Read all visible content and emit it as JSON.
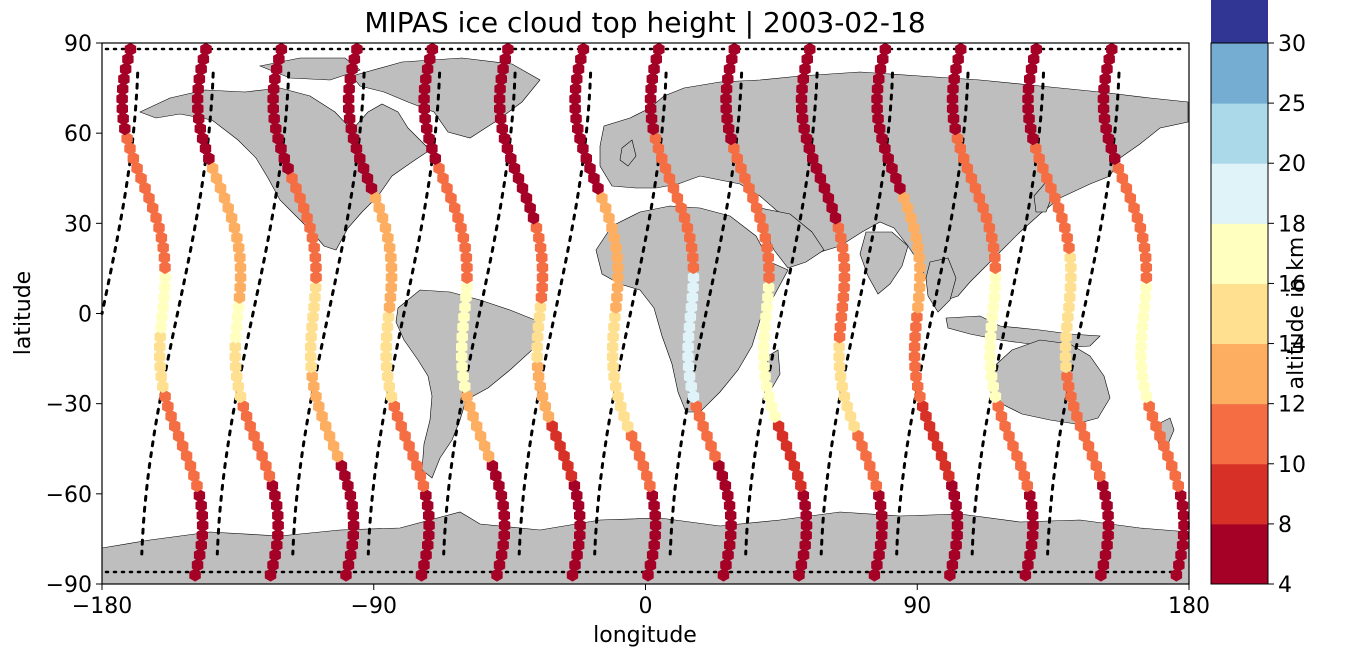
{
  "title": "MIPAS ice cloud top height | 2003-02-18",
  "chart_data": {
    "type": "scatter",
    "title": "MIPAS ice cloud top height | 2003-02-18",
    "xlabel": "longitude",
    "ylabel": "latitude",
    "xlim": [
      -180,
      180
    ],
    "ylim": [
      -90,
      90
    ],
    "xticks": [
      -180,
      -90,
      0,
      90,
      180
    ],
    "yticks": [
      -90,
      -60,
      -30,
      0,
      30,
      60,
      90
    ],
    "xtick_labels": [
      "−180",
      "−90",
      "0",
      "90",
      "180"
    ],
    "ytick_labels": [
      "−90",
      "−60",
      "−30",
      "0",
      "30",
      "60",
      "90"
    ],
    "land_color": "#bebebe",
    "track_color": "#000000",
    "marker": "hexagon",
    "colorbar": {
      "label": "altitude in km",
      "boundaries": [
        4,
        8,
        10,
        12,
        14,
        16,
        18,
        20,
        25,
        30
      ],
      "tick_labels": [
        "4",
        "8",
        "10",
        "12",
        "14",
        "16",
        "18",
        "20",
        "25",
        "30"
      ],
      "colors": [
        "#a50026",
        "#d73027",
        "#f46d43",
        "#fdae61",
        "#fee090",
        "#ffffbf",
        "#e0f3f8",
        "#abd9e9",
        "#74add1",
        "#313695"
      ]
    },
    "orbits": [
      {
        "ascending_lon": -160,
        "descending_lon": -180,
        "segments": [
          [
            -90,
            -60,
            7
          ],
          [
            -60,
            -25,
            11
          ],
          [
            -25,
            -5,
            14
          ],
          [
            -5,
            15,
            17
          ],
          [
            15,
            60,
            11
          ],
          [
            60,
            90,
            7
          ]
        ]
      },
      {
        "ascending_lon": -135,
        "descending_lon": -155,
        "segments": [
          [
            -90,
            -55,
            7
          ],
          [
            -55,
            -30,
            11
          ],
          [
            -30,
            -10,
            15
          ],
          [
            -10,
            5,
            17
          ],
          [
            5,
            50,
            12
          ],
          [
            50,
            90,
            7
          ]
        ]
      },
      {
        "ascending_lon": -110,
        "descending_lon": -130,
        "segments": [
          [
            -90,
            -50,
            7
          ],
          [
            -50,
            -20,
            12
          ],
          [
            -20,
            10,
            15
          ],
          [
            10,
            45,
            11
          ],
          [
            45,
            90,
            7
          ]
        ]
      },
      {
        "ascending_lon": -85,
        "descending_lon": -105,
        "segments": [
          [
            -90,
            -60,
            7
          ],
          [
            -60,
            -30,
            11
          ],
          [
            -30,
            0,
            15
          ],
          [
            0,
            40,
            12
          ],
          [
            40,
            90,
            7
          ]
        ]
      },
      {
        "ascending_lon": -60,
        "descending_lon": -80,
        "segments": [
          [
            -90,
            -50,
            7
          ],
          [
            -50,
            -25,
            12
          ],
          [
            -25,
            10,
            17
          ],
          [
            10,
            50,
            11
          ],
          [
            50,
            90,
            7
          ]
        ]
      },
      {
        "ascending_lon": -35,
        "descending_lon": -55,
        "segments": [
          [
            -90,
            -55,
            7
          ],
          [
            -55,
            -35,
            9
          ],
          [
            -35,
            -15,
            13
          ],
          [
            -15,
            5,
            15
          ],
          [
            5,
            30,
            11
          ],
          [
            30,
            90,
            7
          ]
        ]
      },
      {
        "ascending_lon": -10,
        "descending_lon": -30,
        "segments": [
          [
            -90,
            -60,
            7
          ],
          [
            -60,
            -40,
            11
          ],
          [
            -40,
            0,
            15
          ],
          [
            0,
            40,
            12
          ],
          [
            40,
            90,
            7
          ]
        ]
      },
      {
        "ascending_lon": 15,
        "descending_lon": -5,
        "segments": [
          [
            -90,
            -50,
            7
          ],
          [
            -50,
            -30,
            11
          ],
          [
            -30,
            15,
            19
          ],
          [
            15,
            60,
            11
          ],
          [
            60,
            90,
            7
          ]
        ]
      },
      {
        "ascending_lon": 40,
        "descending_lon": 20,
        "segments": [
          [
            -90,
            -60,
            7
          ],
          [
            -60,
            -35,
            9
          ],
          [
            -35,
            10,
            17
          ],
          [
            10,
            55,
            11
          ],
          [
            55,
            90,
            7
          ]
        ]
      },
      {
        "ascending_lon": 65,
        "descending_lon": 45,
        "segments": [
          [
            -90,
            -60,
            7
          ],
          [
            -60,
            -40,
            11
          ],
          [
            -40,
            -10,
            15
          ],
          [
            -10,
            30,
            11
          ],
          [
            30,
            90,
            7
          ]
        ]
      },
      {
        "ascending_lon": 90,
        "descending_lon": 70,
        "segments": [
          [
            -90,
            -55,
            7
          ],
          [
            -55,
            -30,
            9
          ],
          [
            -30,
            0,
            11
          ],
          [
            0,
            40,
            12
          ],
          [
            40,
            90,
            7
          ]
        ]
      },
      {
        "ascending_lon": 115,
        "descending_lon": 95,
        "segments": [
          [
            -90,
            -60,
            7
          ],
          [
            -60,
            -30,
            11
          ],
          [
            -30,
            15,
            17
          ],
          [
            15,
            60,
            11
          ],
          [
            60,
            90,
            7
          ]
        ]
      },
      {
        "ascending_lon": 140,
        "descending_lon": 120,
        "segments": [
          [
            -90,
            -55,
            7
          ],
          [
            -55,
            -20,
            11
          ],
          [
            -20,
            20,
            15
          ],
          [
            20,
            55,
            11
          ],
          [
            55,
            90,
            7
          ]
        ]
      },
      {
        "ascending_lon": 165,
        "descending_lon": 145,
        "segments": [
          [
            -90,
            -60,
            7
          ],
          [
            -60,
            -30,
            11
          ],
          [
            -30,
            10,
            17
          ],
          [
            10,
            50,
            11
          ],
          [
            50,
            90,
            7
          ]
        ]
      }
    ]
  }
}
